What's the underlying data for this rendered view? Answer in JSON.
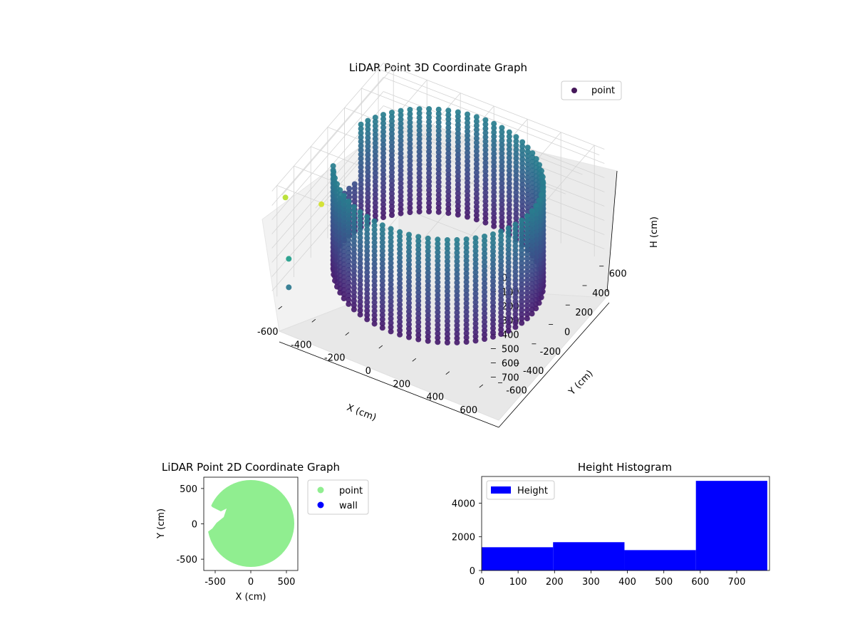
{
  "chart_data": [
    {
      "type": "scatter",
      "projection": "3d",
      "title": "LiDAR Point 3D Coordinate Graph",
      "xlabel": "X (cm)",
      "ylabel": "Y (cm)",
      "zlabel": "H (cm)",
      "x_ticks": [
        -600,
        -400,
        -200,
        0,
        200,
        400,
        600
      ],
      "y_ticks": [
        600,
        400,
        200,
        0,
        -200,
        -400,
        -600
      ],
      "z_ticks": [
        0,
        100,
        200,
        300,
        400,
        500,
        600,
        700
      ],
      "xlim": [
        -660,
        660
      ],
      "ylim": [
        -660,
        660
      ],
      "zlim": [
        0,
        780
      ],
      "z_axis_inverted": true,
      "colormap": "viridis",
      "legend": {
        "position": "upper-right",
        "entries": [
          "point"
        ]
      },
      "legend_color": "#46185a",
      "shape": "cylindrical-wall",
      "radius_cm": 560,
      "wall_points_per_ring": 68,
      "wall_height_levels": [
        30,
        60,
        90,
        120,
        150,
        180,
        210,
        240,
        270,
        300,
        330,
        360,
        390,
        420,
        450,
        480,
        510,
        540,
        570,
        600,
        630,
        660,
        690,
        720,
        750
      ],
      "outliers": [
        {
          "x": -610,
          "y": -560,
          "z": 520
        },
        {
          "x": -610,
          "y": -560,
          "z": 720
        },
        {
          "x": -620,
          "y": -580,
          "z": 80
        },
        {
          "x": -400,
          "y": -590,
          "z": 20
        }
      ]
    },
    {
      "type": "scatter",
      "title": "LiDAR Point 2D Coordinate Graph",
      "xlabel": "X (cm)",
      "ylabel": "Y (cm)",
      "x_ticks": [
        -500,
        0,
        500
      ],
      "y_ticks": [
        500,
        0,
        -500
      ],
      "xlim": [
        -660,
        660
      ],
      "ylim": [
        -660,
        660
      ],
      "grid": false,
      "series": [
        {
          "name": "point",
          "color": "#90ee90"
        },
        {
          "name": "wall",
          "color": "#0000ff"
        }
      ],
      "legend": {
        "position": "outside-right"
      }
    },
    {
      "type": "bar",
      "subtype": "histogram",
      "title": "Height Histogram",
      "bins": [
        [
          0,
          196
        ],
        [
          196,
          392
        ],
        [
          392,
          588
        ],
        [
          588,
          784
        ]
      ],
      "values": [
        1380,
        1680,
        1210,
        5320
      ],
      "color": "#0000ff",
      "x_ticks": [
        0,
        100,
        200,
        300,
        400,
        500,
        600,
        700
      ],
      "y_ticks": [
        0,
        2000,
        4000
      ],
      "xlim": [
        0,
        790
      ],
      "ylim": [
        0,
        5580
      ],
      "series": [
        {
          "name": "Height",
          "color": "#0000ff"
        }
      ],
      "legend": {
        "position": "upper-left"
      }
    }
  ]
}
